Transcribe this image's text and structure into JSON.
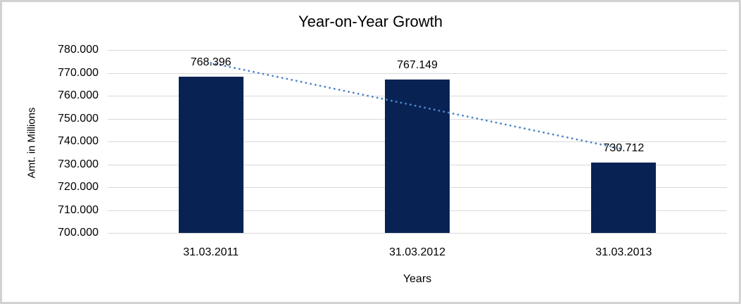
{
  "chart": {
    "title": "Year-on-Year Growth",
    "colors": {
      "bar": "#082254",
      "trendline": "#4e86c8",
      "gridline": "#d9d9d9",
      "frame_border": "#d2d2d2",
      "text": "#000000",
      "background": "#ffffff"
    }
  },
  "chart_data": {
    "type": "bar",
    "title": "Year-on-Year Growth",
    "xlabel": "Years",
    "ylabel": "Amt. in Millions",
    "categories": [
      "31.03.2011",
      "31.03.2012",
      "31.03.2013"
    ],
    "values": [
      768.396,
      767.149,
      730.712
    ],
    "data_labels": [
      "768.396",
      "767.149",
      "730.712"
    ],
    "y_ticks": [
      "780.000",
      "770.000",
      "760.000",
      "750.000",
      "740.000",
      "730.000",
      "720.000",
      "710.000",
      "700.000"
    ],
    "ylim": [
      700,
      780
    ],
    "grid": "horizontal",
    "legend": "none",
    "bar_color": "#082254",
    "trendline": {
      "style": "dotted",
      "shape": "linear",
      "color": "#4e86c8",
      "start_value": 774.3,
      "end_value": 736.6
    }
  }
}
